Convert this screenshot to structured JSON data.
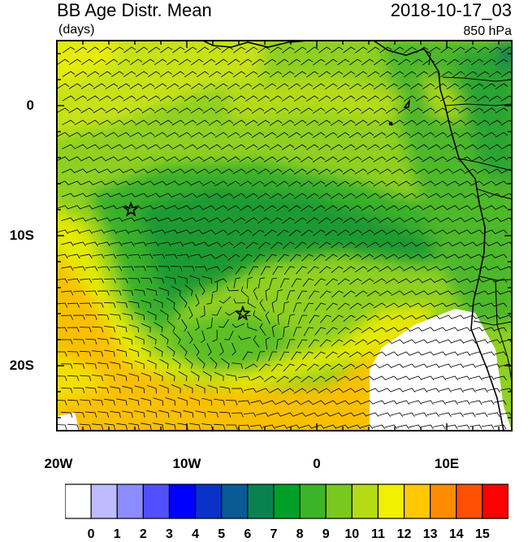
{
  "title": "BB Age Distr. Mean",
  "timestamp": "2018-10-17_03",
  "units": "(days)",
  "level": "850 hPa",
  "axes": {
    "y_ticks": [
      {
        "label": "0",
        "lat": 0
      },
      {
        "label": "10S",
        "lat": -10
      },
      {
        "label": "20S",
        "lat": -20
      }
    ],
    "x_ticks": [
      {
        "label": "20W",
        "lon": -20
      },
      {
        "label": "10W",
        "lon": -10
      },
      {
        "label": "0",
        "lon": 0
      },
      {
        "label": "10E",
        "lon": 10
      }
    ],
    "lon_range": [
      -20,
      15
    ],
    "lat_range": [
      -25,
      5
    ]
  },
  "markers": [
    {
      "name": "star",
      "lon": -14.3,
      "lat": -8.0
    },
    {
      "name": "star",
      "lon": -5.7,
      "lat": -16.0
    }
  ],
  "colorbar": {
    "labels": [
      "0",
      "1",
      "2",
      "3",
      "4",
      "5",
      "6",
      "7",
      "8",
      "9",
      "10",
      "11",
      "12",
      "13",
      "14",
      "15"
    ],
    "colors": [
      "#ffffff",
      "#bcbcff",
      "#8c8cff",
      "#5050ff",
      "#0000ff",
      "#0a32c8",
      "#0a5a96",
      "#0a8250",
      "#00a028",
      "#3cb428",
      "#78c81e",
      "#b4dc14",
      "#f0f000",
      "#ffc800",
      "#ff8c00",
      "#ff5000",
      "#ff0000"
    ]
  }
}
